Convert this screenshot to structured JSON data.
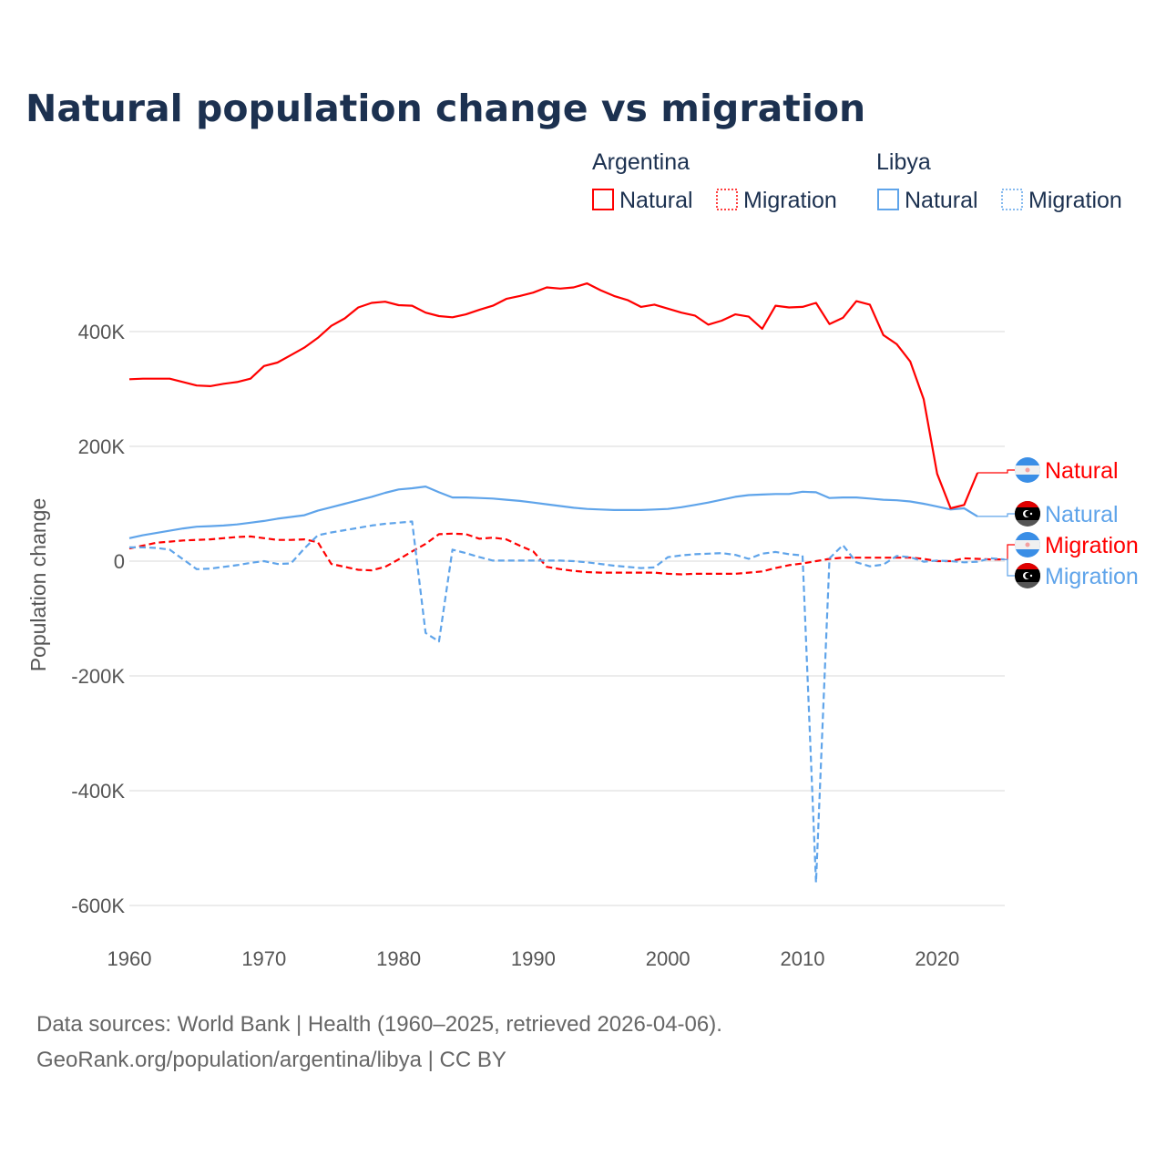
{
  "chart_data": {
    "type": "line",
    "title": "Natural population change vs migration",
    "xlabel": "",
    "ylabel": "Population change",
    "xlim": [
      1960,
      2025
    ],
    "ylim": [
      -600000,
      500000
    ],
    "x_ticks": [
      "1960",
      "1970",
      "1980",
      "1990",
      "2000",
      "2010",
      "2020"
    ],
    "y_ticks": [
      {
        "value": 400000,
        "label": "400K"
      },
      {
        "value": 200000,
        "label": "200K"
      },
      {
        "value": 0,
        "label": "0"
      },
      {
        "value": -200000,
        "label": "-200K"
      },
      {
        "value": -400000,
        "label": "-400K"
      },
      {
        "value": -600000,
        "label": "-600K"
      }
    ],
    "grid": true,
    "legend": {
      "placement": "top-right",
      "groups": [
        {
          "country": "Argentina",
          "entries": [
            "Natural",
            "Migration"
          ]
        },
        {
          "country": "Libya",
          "entries": [
            "Natural",
            "Migration"
          ]
        }
      ]
    },
    "start_year": 1960,
    "series": [
      {
        "name": "Natural",
        "country": "Argentina",
        "color": "#ff0000",
        "dash": false,
        "values_k": [
          317,
          318,
          318,
          318,
          312,
          306,
          305,
          309,
          312,
          318,
          340,
          346,
          359,
          372,
          389,
          410,
          423,
          442,
          450,
          452,
          446,
          445,
          433,
          427,
          425,
          430,
          438,
          445,
          457,
          462,
          468,
          477,
          475,
          477,
          484,
          472,
          462,
          455,
          443,
          447,
          440,
          433,
          428,
          412,
          419,
          430,
          426,
          405,
          445,
          442,
          443,
          450,
          413,
          424,
          453,
          447,
          394,
          378,
          348,
          282,
          152,
          92,
          98,
          154
        ]
      },
      {
        "name": "Natural",
        "country": "Libya",
        "color": "#5fa4ea",
        "dash": false,
        "values_k": [
          40,
          45,
          49,
          53,
          57,
          60,
          61,
          62,
          64,
          67,
          70,
          74,
          77,
          80,
          88,
          94,
          100,
          106,
          112,
          119,
          125,
          127,
          130,
          120,
          111,
          111,
          110,
          109,
          107,
          105,
          102,
          99,
          96,
          93,
          91,
          90,
          89,
          89,
          89,
          90,
          91,
          94,
          98,
          102,
          107,
          112,
          115,
          116,
          117,
          117,
          121,
          120,
          110,
          111,
          111,
          109,
          107,
          106,
          104,
          100,
          95,
          90,
          92,
          78
        ]
      },
      {
        "name": "Migration",
        "country": "Argentina",
        "color": "#ff0000",
        "dash": true,
        "values_k": [
          22,
          27,
          32,
          34,
          36,
          37,
          38,
          40,
          42,
          43,
          40,
          37,
          37,
          38,
          33,
          -5,
          -10,
          -15,
          -16,
          -10,
          3,
          17,
          30,
          47,
          48,
          47,
          39,
          41,
          38,
          27,
          17,
          -10,
          -14,
          -17,
          -19,
          -20,
          -20,
          -20,
          -20,
          -20,
          -22,
          -23,
          -22,
          -22,
          -22,
          -22,
          -20,
          -18,
          -12,
          -7,
          -4,
          0,
          4,
          6,
          6,
          6,
          6,
          6,
          6,
          4,
          0,
          0,
          5,
          4,
          3,
          3
        ]
      },
      {
        "name": "Migration",
        "country": "Libya",
        "color": "#5fa4ea",
        "dash": true,
        "values_k": [
          24,
          24,
          23,
          20,
          3,
          -14,
          -13,
          -10,
          -7,
          -3,
          0,
          -5,
          -4,
          22,
          45,
          50,
          54,
          58,
          62,
          65,
          67,
          69,
          -125,
          -140,
          20,
          14,
          7,
          1,
          1,
          1,
          1,
          1,
          1,
          0,
          -2,
          -5,
          -8,
          -10,
          -12,
          -11,
          7,
          10,
          12,
          13,
          14,
          11,
          4,
          13,
          16,
          12,
          10,
          -560,
          5,
          28,
          -2,
          -9,
          -6,
          9,
          7,
          -1,
          1,
          0,
          -2,
          -1,
          5,
          3
        ]
      }
    ],
    "end_labels": [
      "Natural",
      "Natural",
      "Migration",
      "Migration"
    ]
  },
  "footer": {
    "source": "Data sources: World Bank | Health (1960–2025, retrieved 2026-04-06).",
    "credit": "GeoRank.org/population/argentina/libya | CC BY"
  }
}
